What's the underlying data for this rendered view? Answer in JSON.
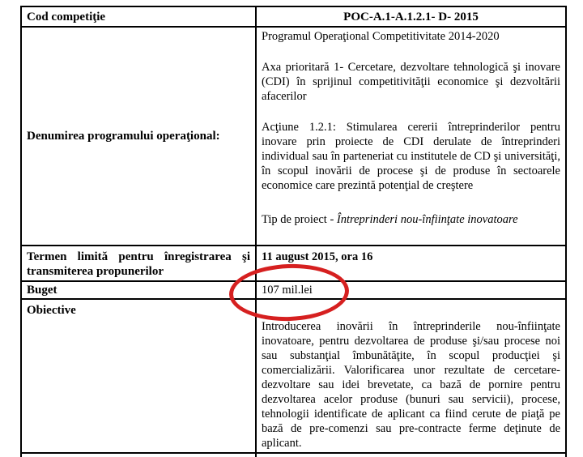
{
  "rows": {
    "cod": {
      "label": "Cod competiţie",
      "value": "POC-A.1-A.1.2.1- D- 2015"
    },
    "denumire": {
      "label": "Denumirea programului operaţional:",
      "para1": "Programul Operaţional Competitivitate 2014-2020",
      "para2": "Axa prioritară 1- Cercetare, dezvoltare tehnologică şi inovare (CDI) în sprijinul competitivităţii economice şi dezvoltării afacerilor",
      "para3": "Acţiune 1.2.1: Stimularea cererii întreprinderilor pentru inovare prin proiecte de CDI derulate de întreprinderi individual sau în parteneriat cu institutele de CD şi universităţi, în scopul inovării de procese şi de produse în sectoarele economice care prezintă potenţial de creştere",
      "tip_prefix": "Tip de proiect - ",
      "tip_italic": "Întreprinderi nou-înfiinţate inovatoare"
    },
    "termen": {
      "label": "Termen limită pentru înregistrarea şi transmiterea propunerilor",
      "value": "11 august 2015, ora 16"
    },
    "buget": {
      "label": "Buget",
      "value": "107 mil.lei"
    },
    "obiective": {
      "label": "Obiective",
      "value": "Introducerea inovării în întreprinderile nou-înfiinţate inovatoare, pentru dezvoltarea de produse şi/sau procese noi sau substanţial îmbunătăţite, în scopul producţiei şi comercializării. Valorificarea unor rezultate de cercetare-dezvoltare sau idei brevetate, ca bază de pornire pentru dezvoltarea acelor produse (bunuri sau servicii), procese, tehnologii identificate de aplicant ca fiind cerute de piaţă pe bază de pre-comenzi sau pre-contracte ferme deţinute de aplicant."
    }
  },
  "annotation": {
    "shape": "ellipse",
    "color": "#d62020",
    "marks": "107 mil.lei"
  }
}
